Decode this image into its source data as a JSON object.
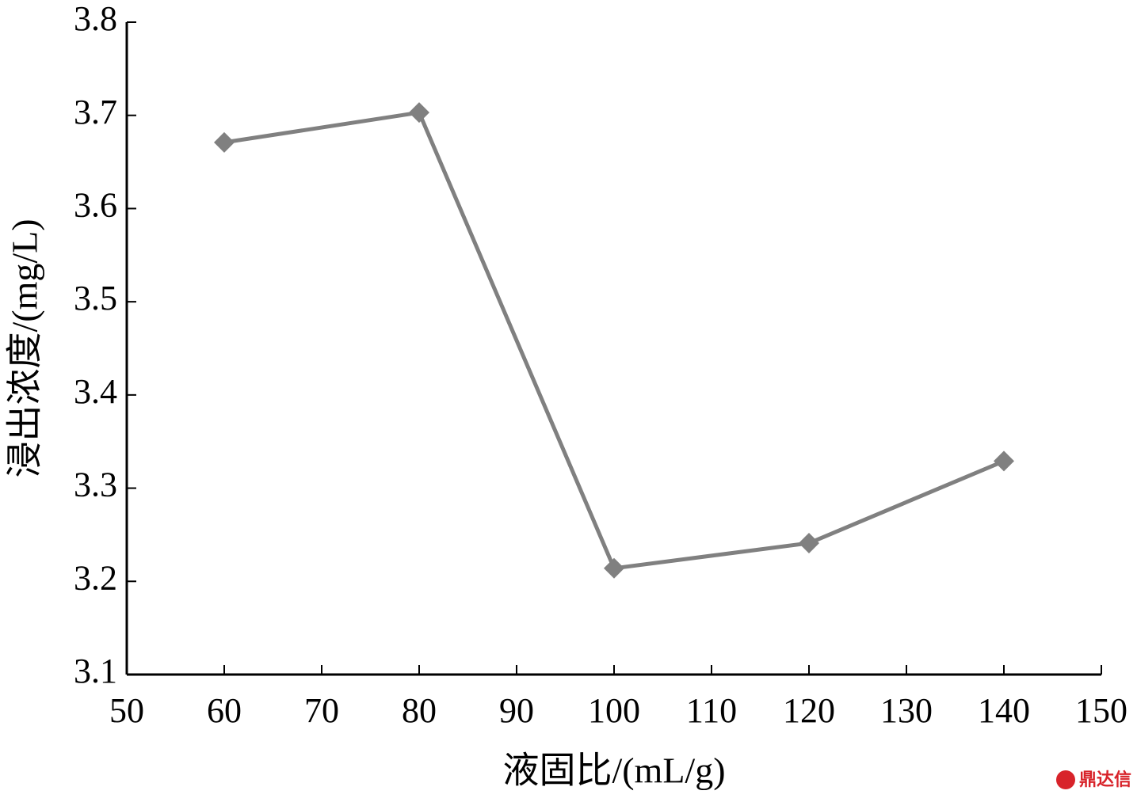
{
  "chart_data": {
    "type": "line",
    "x_label": "液固比/(mL/g)",
    "y_label": "浸出浓度/(mg/L)",
    "x": [
      60,
      80,
      100,
      120,
      140
    ],
    "series": [
      {
        "color": "#808080",
        "values": [
          3.671,
          3.703,
          3.214,
          3.241,
          3.329
        ]
      }
    ],
    "xlim": [
      50,
      150
    ],
    "xticks": [
      50,
      60,
      70,
      80,
      90,
      100,
      110,
      120,
      130,
      140,
      150
    ],
    "ylim": [
      3.1,
      3.8
    ],
    "yticks": [
      3.1,
      3.2,
      3.3,
      3.4,
      3.5,
      3.6,
      3.7,
      3.8
    ],
    "watermark": "鼎达信"
  }
}
